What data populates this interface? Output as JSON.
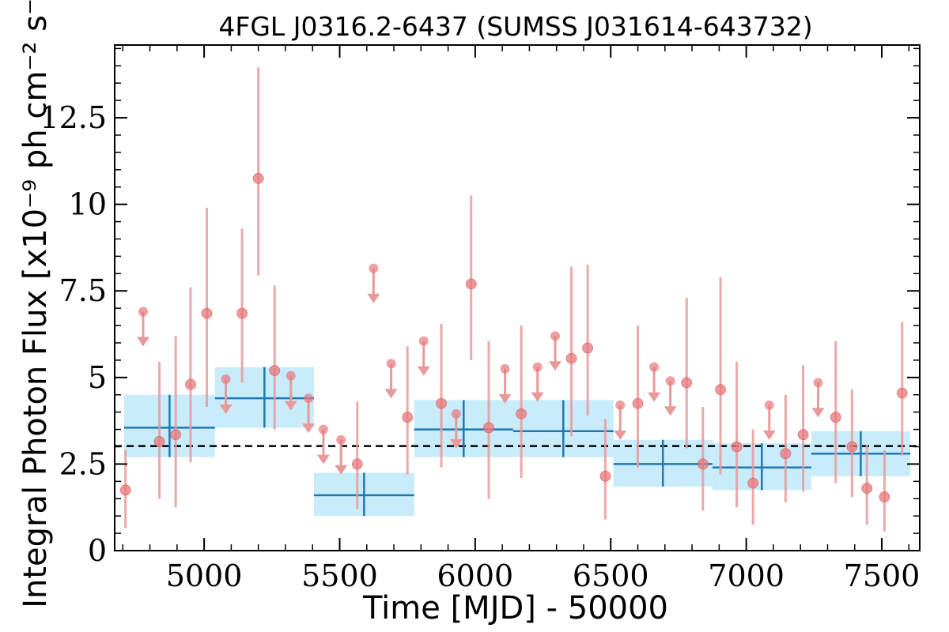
{
  "chart_data": {
    "type": "scatter",
    "title": "4FGL J0316.2-6437 (SUMSS J031614-643732)",
    "xlabel": "Time [MJD] - 50000",
    "ylabel": "Integral Photon Flux [x10⁻⁹ ph cm⁻² s⁻¹]",
    "xlim": [
      4670,
      7640
    ],
    "ylim": [
      0,
      14.6
    ],
    "xticks": [
      5000,
      5500,
      6000,
      6500,
      7000,
      7500
    ],
    "xtick_labels": [
      "5000",
      "5500",
      "6000",
      "6500",
      "7000",
      "7500"
    ],
    "yticks": [
      0,
      2.5,
      5,
      7.5,
      10,
      12.5
    ],
    "ytick_labels": [
      "0",
      "2.5",
      "5",
      "7.5",
      "10",
      "12.5"
    ],
    "reference_line": 3.02,
    "colors": {
      "points": "#e8777a",
      "errorbars": "#e89a9b",
      "blocks": "#c9ecfb",
      "block_lines": "#1f77b4",
      "dashed": "#000000"
    },
    "detections": [
      {
        "x": 4710,
        "y": 1.75,
        "lo": 0.65,
        "hi": 2.9
      },
      {
        "x": 4835,
        "y": 3.15,
        "lo": 1.5,
        "hi": 5.45
      },
      {
        "x": 4895,
        "y": 3.35,
        "lo": 1.25,
        "hi": 6.2
      },
      {
        "x": 4950,
        "y": 4.8,
        "lo": 2.55,
        "hi": 7.6
      },
      {
        "x": 5010,
        "y": 6.85,
        "lo": 4.15,
        "hi": 9.9
      },
      {
        "x": 5140,
        "y": 6.85,
        "lo": 4.85,
        "hi": 9.3
      },
      {
        "x": 5200,
        "y": 10.75,
        "lo": 7.95,
        "hi": 13.95
      },
      {
        "x": 5260,
        "y": 5.2,
        "lo": 3.5,
        "hi": 7.65
      },
      {
        "x": 5565,
        "y": 2.5,
        "lo": 1.2,
        "hi": 4.3
      },
      {
        "x": 5750,
        "y": 3.85,
        "lo": 2.2,
        "hi": 5.9
      },
      {
        "x": 5875,
        "y": 4.25,
        "lo": 2.4,
        "hi": 6.55
      },
      {
        "x": 5985,
        "y": 7.7,
        "lo": 5.5,
        "hi": 10.25
      },
      {
        "x": 6050,
        "y": 3.55,
        "lo": 1.5,
        "hi": 6.05
      },
      {
        "x": 6170,
        "y": 3.95,
        "lo": 2.1,
        "hi": 6.5
      },
      {
        "x": 6355,
        "y": 5.55,
        "lo": 3.3,
        "hi": 8.2
      },
      {
        "x": 6415,
        "y": 5.85,
        "lo": 3.9,
        "hi": 8.25
      },
      {
        "x": 6480,
        "y": 2.15,
        "lo": 0.9,
        "hi": 3.8
      },
      {
        "x": 6600,
        "y": 4.25,
        "lo": 2.4,
        "hi": 6.5
      },
      {
        "x": 6780,
        "y": 4.85,
        "lo": 2.95,
        "hi": 7.3
      },
      {
        "x": 6840,
        "y": 2.5,
        "lo": 1.15,
        "hi": 4.15
      },
      {
        "x": 6905,
        "y": 4.65,
        "lo": 2.2,
        "hi": 7.9
      },
      {
        "x": 6965,
        "y": 3.0,
        "lo": 1.25,
        "hi": 5.45
      },
      {
        "x": 7025,
        "y": 1.95,
        "lo": 0.75,
        "hi": 3.5
      },
      {
        "x": 7145,
        "y": 2.8,
        "lo": 1.4,
        "hi": 4.5
      },
      {
        "x": 7210,
        "y": 3.35,
        "lo": 1.7,
        "hi": 5.35
      },
      {
        "x": 7330,
        "y": 3.85,
        "lo": 1.95,
        "hi": 6.05
      },
      {
        "x": 7390,
        "y": 3.0,
        "lo": 1.55,
        "hi": 4.65
      },
      {
        "x": 7445,
        "y": 1.8,
        "lo": 0.75,
        "hi": 3.05
      },
      {
        "x": 7510,
        "y": 1.55,
        "lo": 0.55,
        "hi": 2.9
      },
      {
        "x": 7575,
        "y": 4.55,
        "lo": 2.75,
        "hi": 6.6
      }
    ],
    "upper_limits": [
      {
        "x": 4775,
        "y": 6.9
      },
      {
        "x": 5080,
        "y": 4.95
      },
      {
        "x": 5320,
        "y": 5.05
      },
      {
        "x": 5385,
        "y": 4.4
      },
      {
        "x": 5440,
        "y": 3.5
      },
      {
        "x": 5505,
        "y": 3.2
      },
      {
        "x": 5625,
        "y": 8.15
      },
      {
        "x": 5690,
        "y": 5.4
      },
      {
        "x": 5810,
        "y": 6.05
      },
      {
        "x": 5930,
        "y": 3.95
      },
      {
        "x": 6110,
        "y": 5.25
      },
      {
        "x": 6230,
        "y": 5.3
      },
      {
        "x": 6295,
        "y": 6.2
      },
      {
        "x": 6535,
        "y": 4.2
      },
      {
        "x": 6660,
        "y": 5.3
      },
      {
        "x": 6720,
        "y": 4.9
      },
      {
        "x": 7085,
        "y": 4.2
      },
      {
        "x": 7265,
        "y": 4.85
      }
    ],
    "blocks": [
      {
        "x0": 4705,
        "x1": 5040,
        "y": 3.55,
        "y_lo": 2.7,
        "y_hi": 4.5
      },
      {
        "x0": 5040,
        "x1": 5405,
        "y": 4.4,
        "y_lo": 3.55,
        "y_hi": 5.3
      },
      {
        "x0": 5405,
        "x1": 5775,
        "y": 1.6,
        "y_lo": 1.0,
        "y_hi": 2.25
      },
      {
        "x0": 5775,
        "x1": 6140,
        "y": 3.5,
        "y_lo": 2.7,
        "y_hi": 4.35
      },
      {
        "x0": 6140,
        "x1": 6510,
        "y": 3.45,
        "y_lo": 2.7,
        "y_hi": 4.35
      },
      {
        "x0": 6510,
        "x1": 6875,
        "y": 2.5,
        "y_lo": 1.85,
        "y_hi": 3.2
      },
      {
        "x0": 6875,
        "x1": 7240,
        "y": 2.4,
        "y_lo": 1.75,
        "y_hi": 3.1
      },
      {
        "x0": 7240,
        "x1": 7605,
        "y": 2.8,
        "y_lo": 2.15,
        "y_hi": 3.45
      }
    ]
  }
}
